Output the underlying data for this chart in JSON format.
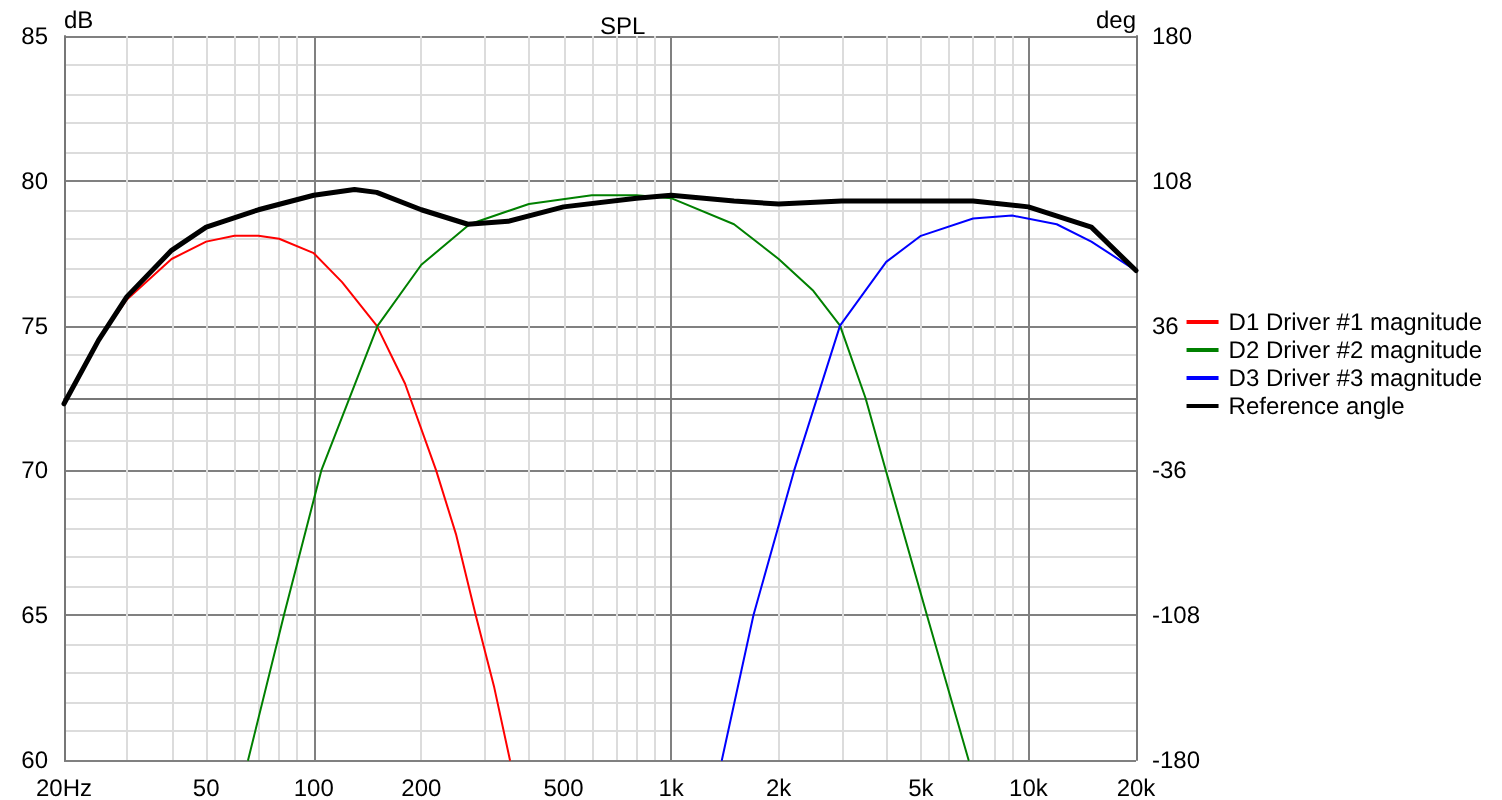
{
  "chart_data": {
    "type": "line",
    "title": "SPL",
    "ylabel": "dB",
    "y2label": "deg",
    "log": "x",
    "grid": true,
    "legend": "right",
    "marker": "none",
    "line_style": "solid",
    "xlim": [
      20,
      20000
    ],
    "xticks": [
      {
        "value": 20,
        "label": "20Hz"
      },
      50,
      100,
      200,
      500,
      {
        "value": 1000,
        "label": "1k"
      },
      {
        "value": 2000,
        "label": "2k"
      },
      {
        "value": 5000,
        "label": "5k"
      },
      {
        "value": 10000,
        "label": "10k"
      },
      {
        "value": 20000,
        "label": "20k"
      }
    ],
    "ylim": [
      60,
      85
    ],
    "yticks": [
      60,
      65,
      70,
      75,
      80,
      85
    ],
    "y2lim": [
      -180,
      180
    ],
    "y2ticks": [
      -180,
      -108,
      -36,
      36,
      108,
      180
    ],
    "series": [
      {
        "name": "D1 Driver #1 magnitude",
        "color": "#ff0000",
        "x": [
          20,
          25,
          30,
          40,
          50,
          60,
          70,
          80,
          100,
          120,
          150,
          180,
          220,
          250,
          284,
          320,
          354
        ],
        "values": [
          72.3,
          74.5,
          75.9,
          77.3,
          77.9,
          78.1,
          78.1,
          78.0,
          77.5,
          76.5,
          75,
          73,
          70,
          67.8,
          65,
          62.5,
          60
        ]
      },
      {
        "name": "D2 Driver #2 magnitude",
        "color": "#008000",
        "x": [
          65.5,
          82.5,
          105,
          151,
          200,
          273,
          400,
          600,
          800,
          1000,
          1500,
          2000,
          2500,
          2970,
          3500,
          3990,
          5200,
          6800
        ],
        "values": [
          60,
          65,
          70,
          75,
          77.1,
          78.5,
          79.2,
          79.5,
          79.5,
          79.4,
          78.5,
          77.3,
          76.2,
          75,
          72.5,
          70,
          65,
          60
        ]
      },
      {
        "name": "D3 Driver #3 magnitude",
        "color": "#0000ff",
        "x": [
          1387,
          1700,
          2210,
          2970,
          4000,
          5000,
          7000,
          9000,
          12000,
          15000,
          20000
        ],
        "values": [
          60,
          65,
          70,
          75,
          77.2,
          78.1,
          78.7,
          78.8,
          78.5,
          77.9,
          76.9
        ]
      },
      {
        "name": "Reference angle",
        "color": "#000000",
        "x": [
          20,
          25,
          30,
          40,
          50,
          70,
          100,
          130,
          150,
          200,
          270,
          350,
          500,
          800,
          1000,
          1500,
          2000,
          3000,
          5000,
          7000,
          10000,
          15000,
          20000
        ],
        "values": [
          72.3,
          74.5,
          76,
          77.6,
          78.4,
          79,
          79.5,
          79.7,
          79.6,
          79,
          78.5,
          78.6,
          79.1,
          79.4,
          79.5,
          79.3,
          79.2,
          79.3,
          79.3,
          79.3,
          79.1,
          78.4,
          76.9
        ]
      }
    ]
  }
}
